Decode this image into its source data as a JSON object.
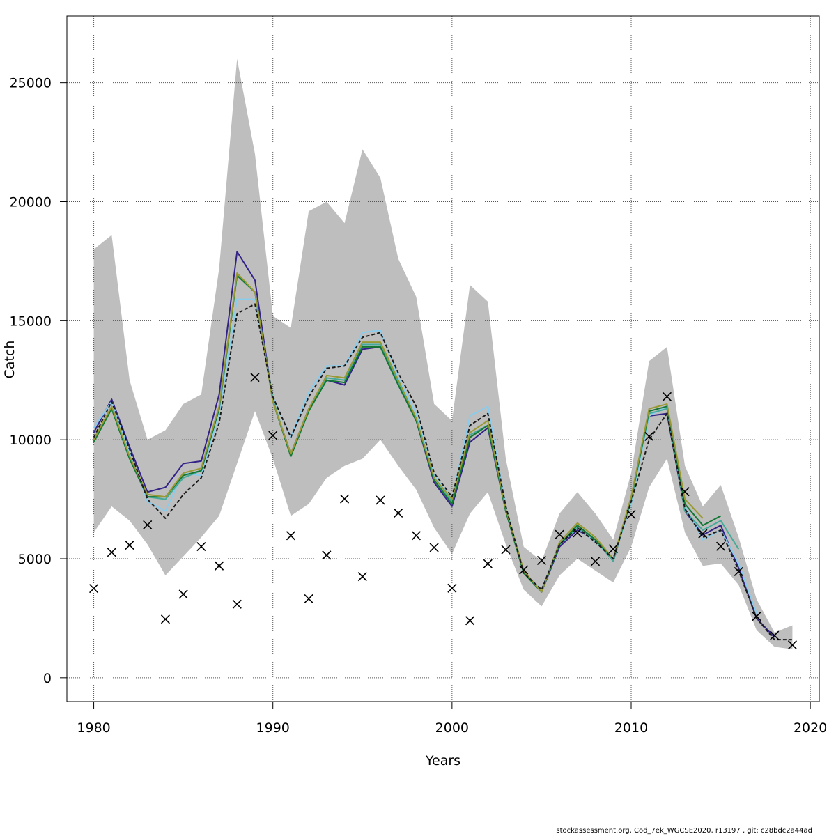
{
  "chart_data": {
    "type": "line",
    "xlabel": "Years",
    "ylabel": "Catch",
    "xlim": [
      1978.5,
      2020.5
    ],
    "ylim": [
      -1000,
      27800
    ],
    "xticks": [
      1980,
      1990,
      2000,
      2010,
      2020
    ],
    "yticks": [
      0,
      5000,
      10000,
      15000,
      20000,
      25000
    ],
    "grid": true,
    "legend": "none",
    "band": {
      "color": "#bebebe",
      "x": [
        1980,
        1981,
        1982,
        1983,
        1984,
        1985,
        1986,
        1987,
        1988,
        1989,
        1990,
        1991,
        1992,
        1993,
        1994,
        1995,
        1996,
        1997,
        1998,
        1999,
        2000,
        2001,
        2002,
        2003,
        2004,
        2005,
        2006,
        2007,
        2008,
        2009,
        2010,
        2011,
        2012,
        2013,
        2014,
        2015,
        2016,
        2017,
        2018,
        2019
      ],
      "upper": [
        18000,
        18600,
        12500,
        10000,
        10400,
        11500,
        11900,
        17200,
        26000,
        22000,
        15200,
        14700,
        19600,
        20000,
        19100,
        22200,
        21000,
        17600,
        16000,
        11500,
        10800,
        16500,
        15800,
        9200,
        5500,
        4900,
        6900,
        7800,
        6900,
        5800,
        8600,
        13300,
        13900,
        8900,
        7200,
        8100,
        5900,
        3300,
        1900,
        2200
      ],
      "lower": [
        6100,
        7200,
        6600,
        5600,
        4300,
        5100,
        5900,
        6800,
        9000,
        11200,
        9200,
        6800,
        7300,
        8400,
        8900,
        9200,
        10000,
        8900,
        7900,
        6300,
        5200,
        6900,
        7800,
        5600,
        3700,
        3000,
        4300,
        5000,
        4500,
        4000,
        5500,
        8000,
        9200,
        6100,
        4700,
        4800,
        3900,
        2000,
        1300,
        1200
      ]
    },
    "series": [
      {
        "color": "#332288",
        "dash": false,
        "x": [
          1980,
          1981,
          1982,
          1983,
          1984,
          1985,
          1986,
          1987,
          1988,
          1989,
          1990,
          1991,
          1992,
          1993,
          1994,
          1995,
          1996,
          1997,
          1998,
          1999,
          2000,
          2001,
          2002,
          2003,
          2004,
          2005,
          2006,
          2007,
          2008,
          2009,
          2010,
          2011,
          2012,
          2013,
          2014,
          2015,
          2016,
          2017,
          2018
        ],
        "values": [
          10300,
          11700,
          9700,
          7800,
          8000,
          9000,
          9100,
          11900,
          17900,
          16700,
          11600,
          9400,
          11300,
          12500,
          12300,
          13800,
          13900,
          12300,
          10800,
          8200,
          7200,
          9900,
          10500,
          7000,
          4400,
          3600,
          5500,
          6200,
          5800,
          4900,
          7500,
          11000,
          11100,
          7000,
          6000,
          6400,
          4600,
          2500,
          1700
        ]
      },
      {
        "color": "#88ccee",
        "dash": false,
        "x": [
          1980,
          1981,
          1982,
          1983,
          1984,
          1985,
          1986,
          1987,
          1988,
          1989,
          1990,
          1991,
          1992,
          1993,
          1994,
          1995,
          1996,
          1997,
          1998,
          1999,
          2000,
          2001,
          2002,
          2003,
          2004,
          2005,
          2006,
          2007,
          2008,
          2009,
          2010,
          2011,
          2012,
          2013,
          2014,
          2015,
          2016,
          2017
        ],
        "values": [
          10500,
          11600,
          9500,
          7400,
          7000,
          8600,
          8500,
          11100,
          15900,
          15900,
          11800,
          10100,
          12000,
          13100,
          13100,
          14500,
          14600,
          12600,
          11100,
          8500,
          7500,
          11000,
          11400,
          7200,
          4400,
          3700,
          5600,
          6300,
          5700,
          5000,
          7300,
          11000,
          11400,
          7200,
          5800,
          6200,
          4800,
          2700
        ]
      },
      {
        "color": "#44aa99",
        "dash": false,
        "x": [
          1980,
          1981,
          1982,
          1983,
          1984,
          1985,
          1986,
          1987,
          1988,
          1989,
          1990,
          1991,
          1992,
          1993,
          1994,
          1995,
          1996,
          1997,
          1998,
          1999,
          2000,
          2001,
          2002,
          2003,
          2004,
          2005,
          2006,
          2007,
          2008,
          2009,
          2010,
          2011,
          2012,
          2013,
          2014,
          2015,
          2016
        ],
        "values": [
          10000,
          11300,
          9200,
          7600,
          7500,
          8400,
          8700,
          11300,
          16900,
          16200,
          11700,
          9300,
          11200,
          12600,
          12500,
          14000,
          14000,
          12400,
          10900,
          8300,
          7400,
          10200,
          10600,
          7000,
          4400,
          3600,
          5600,
          6300,
          5800,
          4900,
          7500,
          11100,
          11300,
          7000,
          6200,
          6600,
          5400
        ]
      },
      {
        "color": "#117733",
        "dash": false,
        "x": [
          1980,
          1981,
          1982,
          1983,
          1984,
          1985,
          1986,
          1987,
          1988,
          1989,
          1990,
          1991,
          1992,
          1993,
          1994,
          1995,
          1996,
          1997,
          1998,
          1999,
          2000,
          2001,
          2002,
          2003,
          2004,
          2005,
          2006,
          2007,
          2008,
          2009,
          2010,
          2011,
          2012,
          2013,
          2014,
          2015
        ],
        "values": [
          9900,
          11300,
          9200,
          7600,
          7600,
          8500,
          8700,
          11300,
          16900,
          16200,
          11600,
          9300,
          11200,
          12500,
          12400,
          13900,
          13900,
          12300,
          10800,
          8300,
          7300,
          10100,
          10600,
          7000,
          4400,
          3600,
          5600,
          6400,
          5800,
          5000,
          7500,
          11200,
          11400,
          7300,
          6400,
          6800
        ]
      },
      {
        "color": "#999933",
        "dash": false,
        "x": [
          1980,
          1981,
          1982,
          1983,
          1984,
          1985,
          1986,
          1987,
          1988,
          1989,
          1990,
          1991,
          1992,
          1993,
          1994,
          1995,
          1996,
          1997,
          1998,
          1999,
          2000,
          2001,
          2002,
          2003,
          2004,
          2005,
          2006,
          2007,
          2008,
          2009,
          2010,
          2011,
          2012,
          2013,
          2014
        ],
        "values": [
          10000,
          11400,
          9300,
          7700,
          7600,
          8600,
          8800,
          11400,
          17000,
          16200,
          11600,
          9400,
          11300,
          12700,
          12600,
          14100,
          14100,
          12500,
          10900,
          8400,
          7500,
          10300,
          10800,
          7100,
          4500,
          3600,
          5700,
          6500,
          5900,
          5000,
          7600,
          11300,
          11500,
          7500,
          6700
        ]
      },
      {
        "color": "#1a1a1a",
        "dash": true,
        "x": [
          1980,
          1981,
          1982,
          1983,
          1984,
          1985,
          1986,
          1987,
          1988,
          1989,
          1990,
          1991,
          1992,
          1993,
          1994,
          1995,
          1996,
          1997,
          1998,
          1999,
          2000,
          2001,
          2002,
          2003,
          2004,
          2005,
          2006,
          2007,
          2008,
          2009,
          2010,
          2011,
          2012,
          2013,
          2014,
          2015,
          2016,
          2017,
          2018,
          2019
        ],
        "values": [
          10100,
          11600,
          9600,
          7500,
          6700,
          7700,
          8400,
          10700,
          15300,
          15700,
          11800,
          10100,
          11800,
          13000,
          13100,
          14300,
          14500,
          12800,
          11400,
          8600,
          7600,
          10600,
          11100,
          7200,
          4400,
          3700,
          5600,
          6300,
          5700,
          5000,
          7400,
          10000,
          11100,
          7100,
          5900,
          6200,
          4500,
          2500,
          1600,
          1600
        ]
      }
    ],
    "observed": {
      "marker": "x",
      "x": [
        1980,
        1981,
        1982,
        1983,
        1984,
        1985,
        1986,
        1987,
        1988,
        1989,
        1990,
        1991,
        1992,
        1993,
        1994,
        1995,
        1996,
        1997,
        1998,
        1999,
        2000,
        2001,
        2002,
        2003,
        2004,
        2005,
        2006,
        2007,
        2008,
        2009,
        2010,
        2011,
        2012,
        2013,
        2014,
        2015,
        2016,
        2017,
        2018,
        2019
      ],
      "values": [
        3750,
        5270,
        5570,
        6420,
        2460,
        3510,
        5510,
        4700,
        3090,
        12620,
        10180,
        5970,
        3320,
        5150,
        7510,
        4250,
        7460,
        6920,
        5970,
        5470,
        3760,
        2400,
        4790,
        5380,
        4530,
        4930,
        6020,
        6090,
        4890,
        5410,
        6860,
        10140,
        11810,
        7820,
        6050,
        5520,
        4460,
        2580,
        1780,
        1380
      ]
    },
    "footer": "stockassessment.org, Cod_7ek_WGCSE2020, r13197 , git: c28bdc2a44ad"
  }
}
